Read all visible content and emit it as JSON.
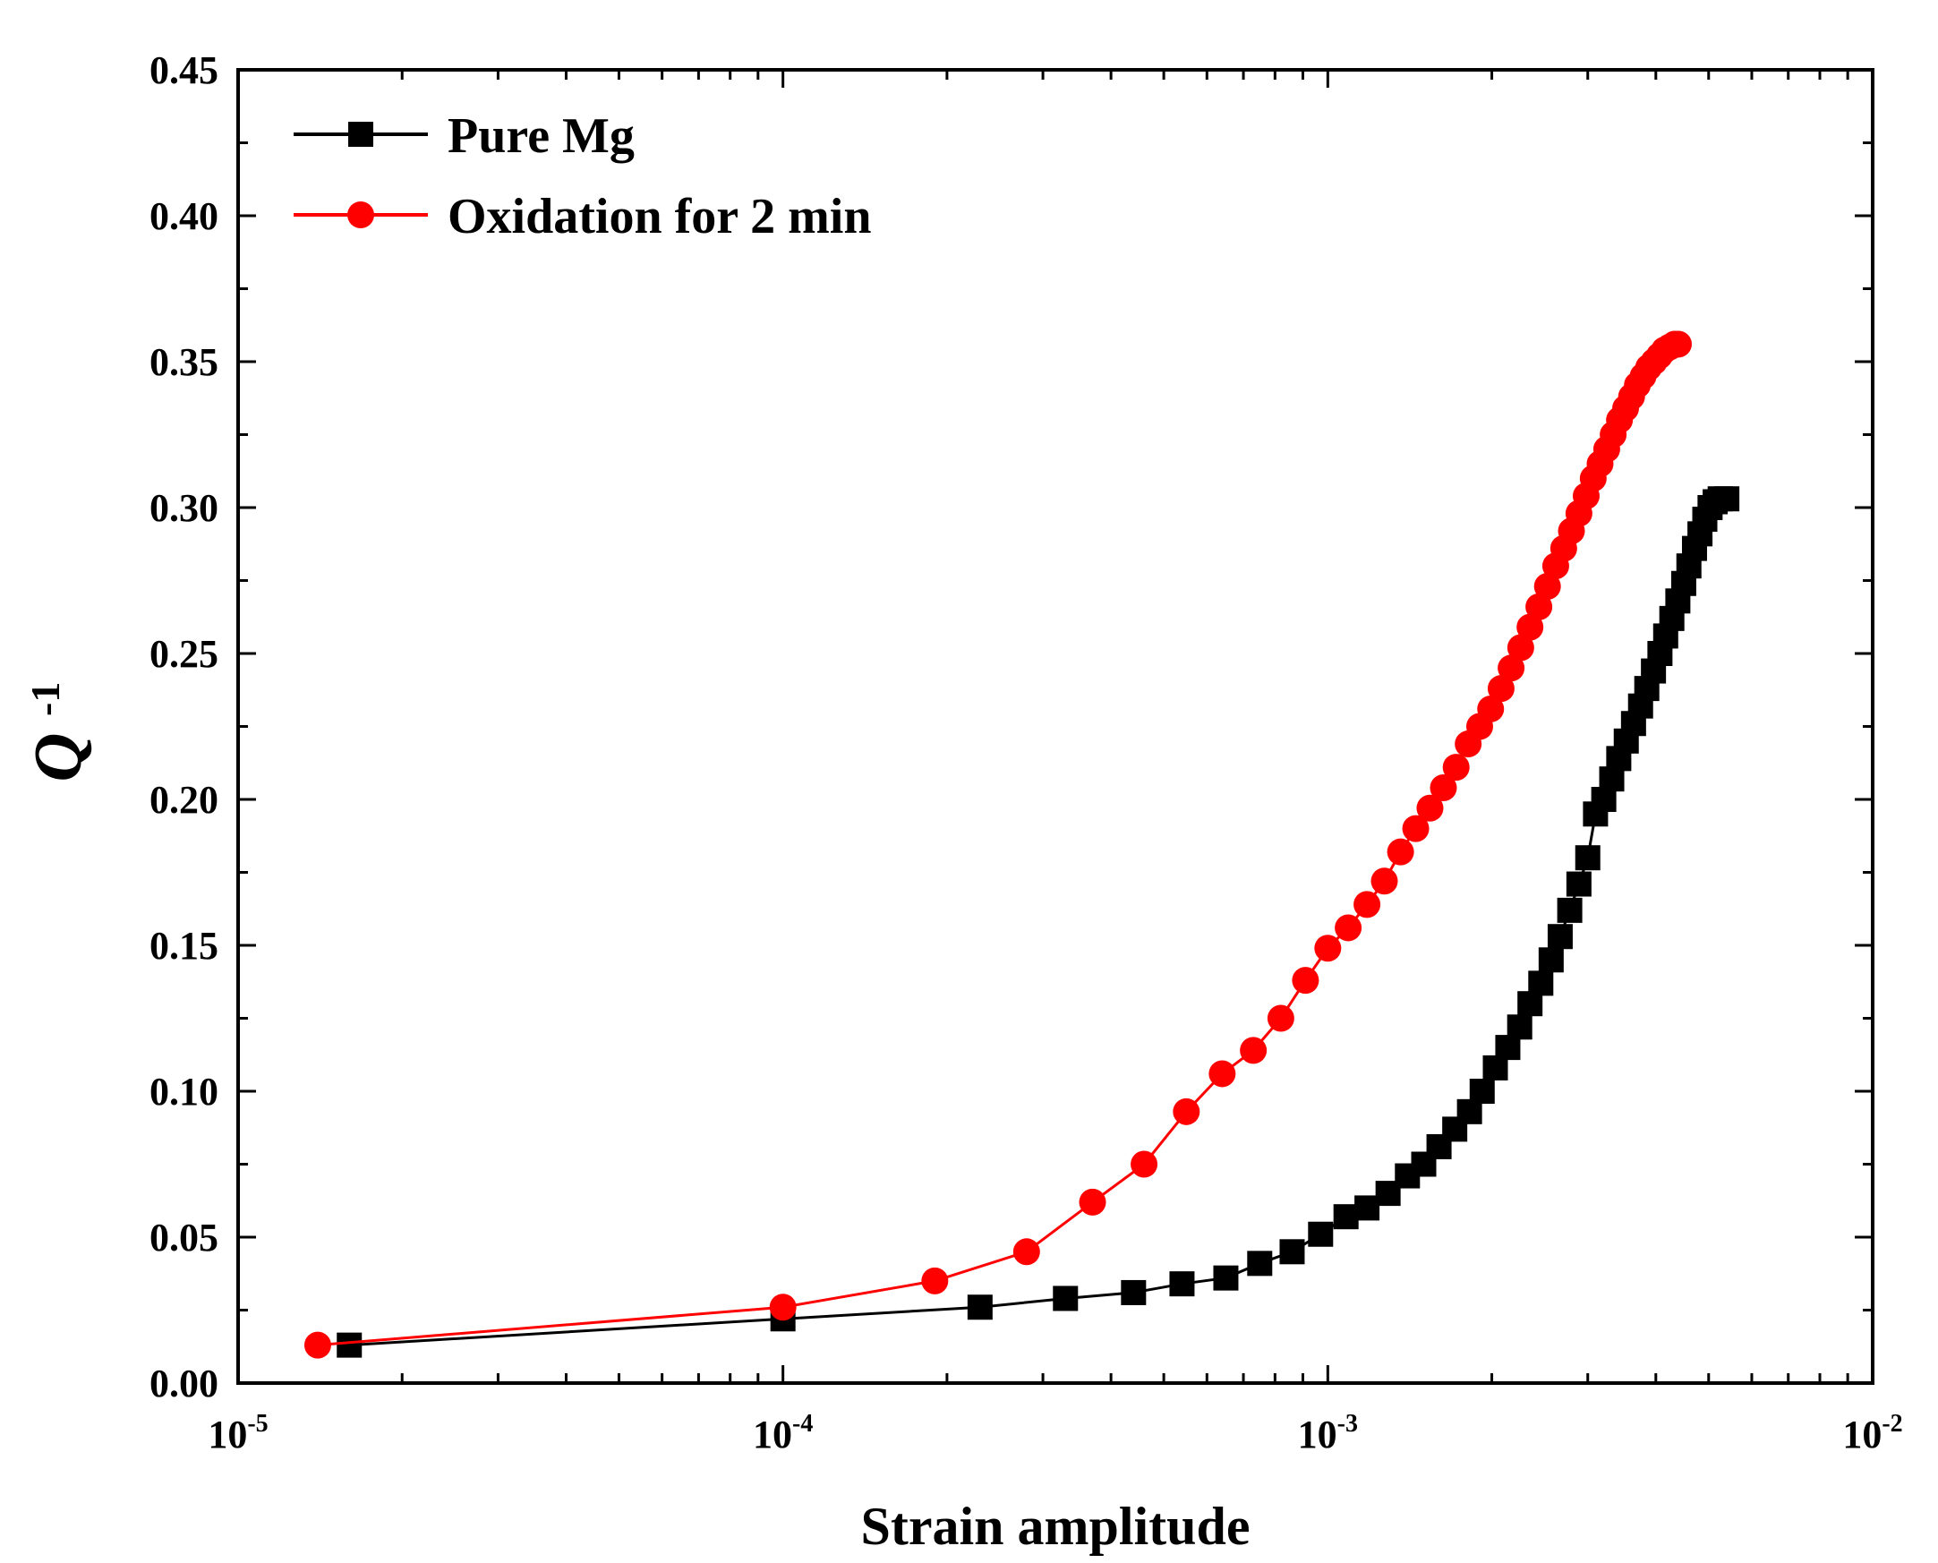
{
  "chart_data": {
    "type": "line",
    "title": "",
    "xlabel": "Strain amplitude",
    "ylabel": {
      "base": "Q",
      "sup": "-1"
    },
    "xscale": "log",
    "xlim": [
      1e-05,
      0.01
    ],
    "ylim": [
      0,
      0.45
    ],
    "x_ticks": [
      {
        "value": 1e-05,
        "base": "10",
        "exp": "-5"
      },
      {
        "value": 0.0001,
        "base": "10",
        "exp": "-4"
      },
      {
        "value": 0.001,
        "base": "10",
        "exp": "-3"
      },
      {
        "value": 0.01,
        "base": "10",
        "exp": "-2"
      }
    ],
    "y_ticks": [
      "0.00",
      "0.05",
      "0.10",
      "0.15",
      "0.20",
      "0.25",
      "0.30",
      "0.35",
      "0.40",
      "0.45"
    ],
    "legend_position": "top-left",
    "series": [
      {
        "name": "Pure Mg",
        "color": "#000000",
        "marker": "square",
        "x": [
          1.6e-05,
          0.0001,
          0.00023,
          0.00033,
          0.00044,
          0.00054,
          0.00065,
          0.00075,
          0.00086,
          0.00097,
          0.00108,
          0.00118,
          0.00129,
          0.0014,
          0.0015,
          0.0016,
          0.00171,
          0.00182,
          0.00192,
          0.00203,
          0.00214,
          0.00225,
          0.00235,
          0.00246,
          0.00257,
          0.00267,
          0.00278,
          0.00289,
          0.003,
          0.0031,
          0.00321,
          0.00332,
          0.00342,
          0.00353,
          0.00364,
          0.00375,
          0.00385,
          0.00396,
          0.00407,
          0.00417,
          0.00428,
          0.00439,
          0.0045,
          0.0046,
          0.00471,
          0.00482,
          0.00492,
          0.00503,
          0.00514,
          0.00525,
          0.0054
        ],
        "y": [
          0.013,
          0.022,
          0.026,
          0.029,
          0.031,
          0.034,
          0.036,
          0.041,
          0.045,
          0.051,
          0.057,
          0.06,
          0.065,
          0.071,
          0.075,
          0.081,
          0.087,
          0.093,
          0.1,
          0.108,
          0.115,
          0.122,
          0.13,
          0.137,
          0.145,
          0.153,
          0.162,
          0.171,
          0.18,
          0.195,
          0.2,
          0.207,
          0.214,
          0.22,
          0.226,
          0.232,
          0.238,
          0.244,
          0.25,
          0.256,
          0.262,
          0.268,
          0.274,
          0.28,
          0.286,
          0.291,
          0.296,
          0.3,
          0.302,
          0.303,
          0.303
        ]
      },
      {
        "name": "Oxidation for 2 min",
        "color": "#ff0000",
        "marker": "circle",
        "x": [
          1.4e-05,
          0.0001,
          0.00019,
          0.00028,
          0.00037,
          0.00046,
          0.00055,
          0.00064,
          0.00073,
          0.00082,
          0.00091,
          0.001,
          0.00109,
          0.00118,
          0.00127,
          0.00136,
          0.00145,
          0.00154,
          0.00163,
          0.00172,
          0.00181,
          0.0019,
          0.00199,
          0.00208,
          0.00217,
          0.00226,
          0.00235,
          0.00244,
          0.00253,
          0.00262,
          0.00271,
          0.0028,
          0.00289,
          0.00298,
          0.00307,
          0.00316,
          0.00325,
          0.00334,
          0.00343,
          0.00352,
          0.00361,
          0.0037,
          0.00379,
          0.00388,
          0.00397,
          0.00406,
          0.00415,
          0.00424,
          0.00433,
          0.0044
        ],
        "y": [
          0.013,
          0.026,
          0.035,
          0.045,
          0.062,
          0.075,
          0.093,
          0.106,
          0.114,
          0.125,
          0.138,
          0.149,
          0.156,
          0.164,
          0.172,
          0.182,
          0.19,
          0.197,
          0.204,
          0.211,
          0.219,
          0.225,
          0.231,
          0.238,
          0.245,
          0.252,
          0.259,
          0.266,
          0.273,
          0.28,
          0.286,
          0.292,
          0.298,
          0.304,
          0.31,
          0.315,
          0.32,
          0.325,
          0.33,
          0.334,
          0.338,
          0.342,
          0.345,
          0.348,
          0.35,
          0.352,
          0.354,
          0.355,
          0.356,
          0.356
        ]
      }
    ]
  }
}
